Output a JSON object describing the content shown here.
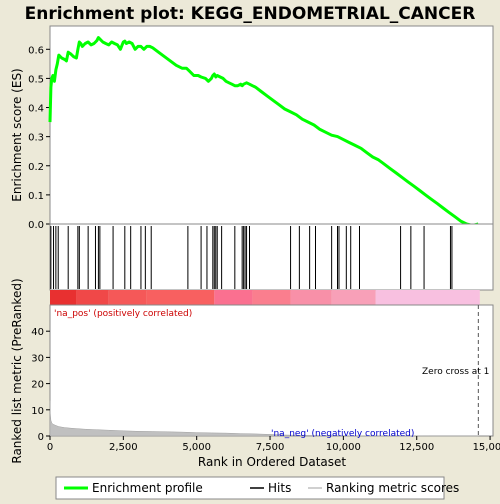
{
  "chart_data": {
    "type": "line",
    "title": "Enrichment plot: KEGG_ENDOMETRIAL_CANCER",
    "es_panel": {
      "ylabel": "Enrichment score (ES)",
      "ylim": [
        0.0,
        0.68
      ],
      "yticks": [
        "0.0",
        "0.1",
        "0.2",
        "0.3",
        "0.4",
        "0.5",
        "0.6"
      ],
      "series": [
        {
          "name": "Enrichment profile",
          "color": "#00FF00",
          "x": [
            0,
            30,
            60,
            100,
            150,
            200,
            250,
            300,
            400,
            500,
            560,
            620,
            700,
            800,
            900,
            950,
            1000,
            1050,
            1100,
            1200,
            1300,
            1400,
            1500,
            1600,
            1650,
            1700,
            1800,
            1900,
            2000,
            2100,
            2200,
            2300,
            2400,
            2500,
            2550,
            2600,
            2700,
            2800,
            2900,
            3000,
            3100,
            3200,
            3300,
            3400,
            3500,
            3700,
            3900,
            4100,
            4300,
            4500,
            4650,
            4750,
            4900,
            5050,
            5150,
            5300,
            5400,
            5500,
            5550,
            5600,
            5650,
            5700,
            5800,
            5900,
            6000,
            6100,
            6200,
            6300,
            6400,
            6500,
            6550,
            6600,
            6700,
            6800,
            6900,
            7000,
            7200,
            7400,
            7600,
            7800,
            8000,
            8200,
            8400,
            8600,
            8800,
            9000,
            9200,
            9400,
            9600,
            9800,
            10000,
            10200,
            10400,
            10600,
            10800,
            11000,
            11200,
            11400,
            11600,
            11800,
            12000,
            12200,
            12400,
            12600,
            12800,
            13000,
            13200,
            13400,
            13600,
            13800,
            14000,
            14200,
            14400,
            14600
          ],
          "y": [
            0.35,
            0.47,
            0.5,
            0.51,
            0.49,
            0.53,
            0.55,
            0.58,
            0.57,
            0.565,
            0.56,
            0.59,
            0.585,
            0.575,
            0.57,
            0.6,
            0.625,
            0.62,
            0.61,
            0.62,
            0.625,
            0.615,
            0.62,
            0.63,
            0.64,
            0.635,
            0.625,
            0.62,
            0.615,
            0.625,
            0.62,
            0.615,
            0.6,
            0.625,
            0.628,
            0.62,
            0.625,
            0.62,
            0.6,
            0.61,
            0.61,
            0.6,
            0.61,
            0.61,
            0.605,
            0.59,
            0.575,
            0.56,
            0.545,
            0.535,
            0.535,
            0.525,
            0.51,
            0.51,
            0.505,
            0.5,
            0.49,
            0.5,
            0.51,
            0.515,
            0.505,
            0.51,
            0.505,
            0.5,
            0.49,
            0.485,
            0.48,
            0.475,
            0.475,
            0.48,
            0.475,
            0.48,
            0.485,
            0.48,
            0.475,
            0.47,
            0.455,
            0.44,
            0.425,
            0.41,
            0.395,
            0.385,
            0.375,
            0.36,
            0.35,
            0.34,
            0.325,
            0.315,
            0.305,
            0.3,
            0.29,
            0.28,
            0.27,
            0.26,
            0.245,
            0.23,
            0.22,
            0.205,
            0.19,
            0.175,
            0.16,
            0.145,
            0.13,
            0.115,
            0.1,
            0.085,
            0.07,
            0.055,
            0.04,
            0.025,
            0.01,
            0.0,
            -0.005,
            0.0
          ]
        }
      ]
    },
    "hits": [
      30,
      120,
      200,
      280,
      620,
      950,
      1000,
      1300,
      1550,
      1650,
      1700,
      2150,
      2550,
      2750,
      3100,
      3250,
      3450,
      4700,
      5150,
      5350,
      5550,
      5600,
      5650,
      5700,
      5850,
      6300,
      6550,
      6600,
      6650,
      6700,
      6800,
      8200,
      8500,
      8850,
      9050,
      9600,
      9800,
      9850,
      10100,
      10250,
      10550,
      11950,
      12300,
      12750,
      13650,
      13700
    ],
    "rank_panel": {
      "ylabel": "Ranked list metric (PreRanked)",
      "xlabel": "Rank in Ordered Dataset",
      "ylim": [
        0,
        50
      ],
      "yticks": [
        "0",
        "10",
        "20",
        "30",
        "40"
      ],
      "xlim": [
        0,
        15100
      ],
      "xticks": [
        "0",
        "2,500",
        "5,000",
        "7,500",
        "10,000",
        "12,500",
        "15,000"
      ],
      "xtick_values": [
        0,
        2500,
        5000,
        7500,
        10000,
        12500,
        15000
      ],
      "metric_x": [
        0,
        10,
        30,
        60,
        100,
        200,
        300,
        500,
        800,
        1200,
        1600,
        2000,
        2500,
        3000,
        3500,
        4000,
        4500,
        5000,
        5500,
        6000,
        6500,
        7000,
        7500,
        8000,
        9000,
        10000,
        11000,
        12000,
        13000,
        14000,
        14600
      ],
      "metric_y": [
        13.5,
        8.5,
        6.0,
        5.0,
        4.5,
        4.0,
        3.6,
        3.2,
        2.9,
        2.6,
        2.4,
        2.2,
        2.0,
        1.8,
        1.7,
        1.6,
        1.5,
        1.3,
        1.2,
        1.1,
        0.9,
        0.8,
        0.6,
        0.4,
        0.2,
        0.1,
        0.05,
        0.02,
        0.01,
        0.0,
        0.0
      ],
      "zero_cross_label": "Zero cross at 1",
      "pos_label": "'na_pos' (positively correlated)",
      "neg_label": "'na_neg' (negatively correlated)",
      "zero_cross_x": 14600
    },
    "legend": {
      "placement": "bottom",
      "entries": [
        {
          "label": "Enrichment profile",
          "color": "#00FF00"
        },
        {
          "label": "Hits",
          "color": "#000000"
        },
        {
          "label": "Ranking metric scores",
          "color": "#C0C0C0"
        }
      ]
    }
  }
}
